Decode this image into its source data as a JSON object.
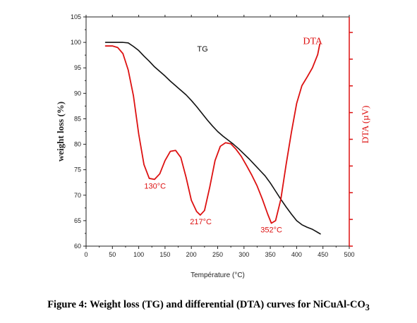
{
  "caption": "Figure 4: Weight loss (TG) and differential (DTA) curves for NiCuAl-CO",
  "caption_sub": "3",
  "chart_data": {
    "type": "line",
    "xlabel": "Température (°C)",
    "ylabel_left": "weight loss (%)",
    "ylabel_right": "DTA (µV)",
    "xlim": [
      0,
      500
    ],
    "ylim_left": [
      60,
      105
    ],
    "x_ticks": [
      0,
      50,
      100,
      150,
      200,
      250,
      300,
      350,
      400,
      450,
      500
    ],
    "y_ticks_left": [
      60,
      65,
      70,
      75,
      80,
      85,
      90,
      95,
      100,
      105
    ],
    "right_axis_tick_labels": false,
    "grid": false,
    "colors": {
      "TG": "#111111",
      "DTA": "#dd1111",
      "right_axis": "#dd1111"
    },
    "series": [
      {
        "name": "TG",
        "axis": "left",
        "x": [
          37,
          50,
          60,
          70,
          80,
          90,
          100,
          110,
          120,
          130,
          140,
          150,
          160,
          170,
          180,
          190,
          200,
          210,
          220,
          230,
          240,
          250,
          260,
          270,
          280,
          290,
          300,
          310,
          320,
          330,
          340,
          350,
          360,
          370,
          380,
          390,
          400,
          410,
          420,
          430,
          435,
          440,
          445
        ],
        "y": [
          100.0,
          100.0,
          100.0,
          100.0,
          99.9,
          99.2,
          98.4,
          97.3,
          96.3,
          95.2,
          94.3,
          93.4,
          92.4,
          91.5,
          90.6,
          89.7,
          88.6,
          87.4,
          86.1,
          84.8,
          83.6,
          82.5,
          81.6,
          80.8,
          80.0,
          79.1,
          78.1,
          77.1,
          76.0,
          74.9,
          73.8,
          72.4,
          70.8,
          69.2,
          67.7,
          66.3,
          65.0,
          64.2,
          63.7,
          63.3,
          63.0,
          62.7,
          62.4
        ]
      },
      {
        "name": "DTA",
        "axis": "right",
        "x": [
          37,
          50,
          60,
          70,
          80,
          90,
          100,
          110,
          120,
          130,
          140,
          150,
          160,
          170,
          180,
          190,
          200,
          210,
          217,
          225,
          235,
          245,
          255,
          265,
          275,
          285,
          295,
          305,
          315,
          325,
          335,
          345,
          352,
          360,
          370,
          380,
          390,
          400,
          410,
          420,
          430,
          440,
          444
        ],
        "y": [
          99.3,
          99.3,
          99.0,
          97.8,
          94.6,
          89.5,
          82.0,
          76.0,
          73.3,
          73.1,
          74.2,
          76.8,
          78.6,
          78.8,
          77.4,
          73.5,
          69.0,
          66.8,
          66.1,
          67.0,
          71.6,
          76.8,
          79.6,
          80.3,
          80.1,
          79.0,
          77.6,
          75.8,
          73.9,
          71.8,
          69.2,
          66.3,
          64.5,
          65.0,
          69.2,
          76.0,
          82.3,
          88.0,
          91.5,
          93.2,
          95.0,
          97.6,
          99.7
        ]
      }
    ],
    "annotations": [
      {
        "text": "TG",
        "x": 211,
        "y": 98.2,
        "color": "#111111"
      },
      {
        "text": "DTA",
        "x": 412,
        "y": 99.7,
        "color": "#dd1111"
      },
      {
        "text": "130°C",
        "x": 131,
        "y": 71.3,
        "color": "#dd1111"
      },
      {
        "text": "217°C",
        "x": 218,
        "y": 64.3,
        "color": "#dd1111"
      },
      {
        "text": "352°C",
        "x": 352,
        "y": 62.7,
        "color": "#dd1111"
      }
    ]
  }
}
